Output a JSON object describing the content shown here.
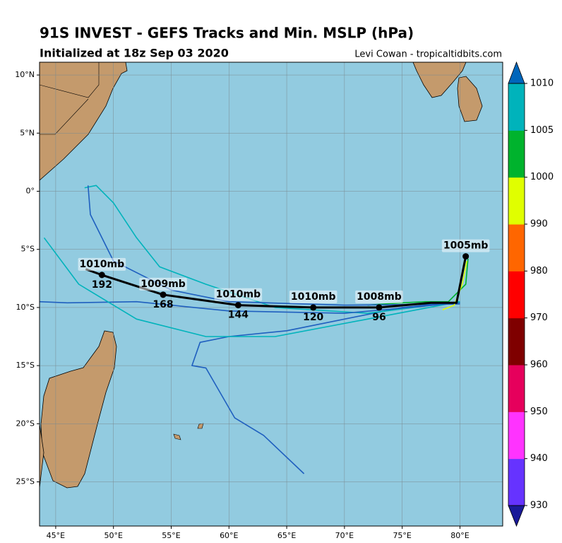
{
  "chart_data": {
    "type": "map",
    "title": "91S INVEST - GEFS Tracks and Min. MSLP (hPa)",
    "subtitle": "Initialized at 18z Sep 03 2020",
    "credit": "Levi Cowan - tropicaltidbits.com",
    "xlim": [
      43.6,
      83.7
    ],
    "ylim": [
      -28.8,
      11.1
    ],
    "xticks": [
      {
        "value": 45,
        "label": "45°E"
      },
      {
        "value": 50,
        "label": "50°E"
      },
      {
        "value": 55,
        "label": "55°E"
      },
      {
        "value": 60,
        "label": "60°E"
      },
      {
        "value": 65,
        "label": "65°E"
      },
      {
        "value": 70,
        "label": "70°E"
      },
      {
        "value": 75,
        "label": "75°E"
      },
      {
        "value": 80,
        "label": "80°E"
      }
    ],
    "yticks": [
      {
        "value": 10,
        "label": "10°N"
      },
      {
        "value": 5,
        "label": "5°N"
      },
      {
        "value": 0,
        "label": "0°"
      },
      {
        "value": -5,
        "label": "5°S"
      },
      {
        "value": -10,
        "label": "10°S"
      },
      {
        "value": -15,
        "label": "15°S"
      },
      {
        "value": -20,
        "label": "20°S"
      },
      {
        "value": -25,
        "label": "25°S"
      }
    ],
    "grid": true,
    "colorbar": {
      "levels": [
        930,
        940,
        950,
        960,
        970,
        980,
        990,
        1000,
        1005,
        1010
      ],
      "colors": [
        "#6633ff",
        "#ff33ff",
        "#e6005c",
        "#7f0000",
        "#ff0000",
        "#ff6600",
        "#e0ff00",
        "#00b32d",
        "#00b3bb"
      ],
      "under": "#1a1a99",
      "over": "#0066bb"
    },
    "members": [
      {
        "color": "#1f5fbf",
        "lon": [
          80,
          75,
          70,
          65,
          60,
          57.5,
          56.8,
          58,
          60.5,
          63,
          66.5
        ],
        "lat": [
          -9.5,
          -10,
          -11,
          -12,
          -12.5,
          -13,
          -15,
          -15.2,
          -19.5,
          -21,
          -24.3
        ]
      },
      {
        "color": "#00b3bb",
        "lon": [
          80,
          72,
          64,
          58,
          54,
          52,
          50,
          48.5,
          47.5
        ],
        "lat": [
          -9.5,
          -10.5,
          -10,
          -8,
          -6.5,
          -4,
          -1,
          0.5,
          0.3
        ]
      },
      {
        "color": "#1f5fbf",
        "lon": [
          80,
          70,
          60,
          52,
          46,
          43.6
        ],
        "lat": [
          -9.6,
          -10.5,
          -10.3,
          -9.5,
          -9.6,
          -9.5
        ]
      },
      {
        "color": "#00b3bb",
        "lon": [
          80,
          72,
          64,
          58,
          52,
          47,
          44
        ],
        "lat": [
          -9.5,
          -11,
          -12.5,
          -12.5,
          -11,
          -8,
          -4
        ]
      },
      {
        "color": "#00b32d",
        "lon": [
          80.7,
          80.5,
          79,
          77,
          75,
          72
        ],
        "lat": [
          -5.8,
          -8,
          -9.5,
          -9.5,
          -9.6,
          -9.8
        ]
      },
      {
        "color": "#1f5fbf",
        "lon": [
          80,
          70,
          60,
          55,
          50,
          48,
          47.8
        ],
        "lat": [
          -9.7,
          -9.8,
          -9.5,
          -8.5,
          -6,
          -2,
          0.5
        ]
      },
      {
        "color": "#e0ff00",
        "lon": [
          80.6,
          80.2,
          79.5,
          78.5
        ],
        "lat": [
          -6,
          -8,
          -9.8,
          -10.2
        ]
      }
    ],
    "mean_track": {
      "color": "#000000",
      "lon": [
        47.6,
        49.0,
        54.3,
        60.8,
        67.3,
        73.0,
        77.5,
        79.7,
        80.5
      ],
      "lat": [
        -6.7,
        -7.2,
        -8.9,
        -9.8,
        -10.0,
        -10.0,
        -9.6,
        -9.6,
        -5.6
      ]
    },
    "mean_points": {
      "lon": [
        49.0,
        54.3,
        60.8,
        67.3,
        73.0,
        80.5
      ],
      "lat": [
        -7.2,
        -8.9,
        -9.8,
        -10.0,
        -10.0,
        -5.6
      ],
      "hours": [
        192,
        168,
        144,
        120,
        96,
        null
      ],
      "mslp": [
        1010,
        1009,
        1010,
        1010,
        1008,
        1005
      ],
      "mslp_labels": [
        "1010mb",
        "1009mb",
        "1010mb",
        "1010mb",
        "1008mb",
        "1005mb"
      ]
    }
  }
}
